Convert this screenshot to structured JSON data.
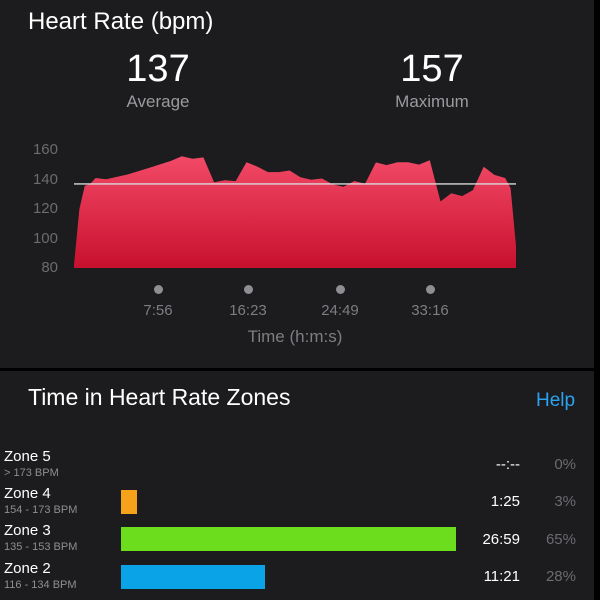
{
  "header": {
    "title": "Heart Rate (bpm)"
  },
  "stats": {
    "average": {
      "value": "137",
      "label": "Average"
    },
    "maximum": {
      "value": "157",
      "label": "Maximum"
    }
  },
  "chart_data": {
    "type": "area",
    "title": "Heart Rate (bpm)",
    "xlabel": "Time (h:m:s)",
    "ylabel": "",
    "ylim": [
      80,
      160
    ],
    "yticks": [
      "160",
      "140",
      "120",
      "100",
      "80"
    ],
    "xticks": [
      "7:56",
      "16:23",
      "24:49",
      "33:16"
    ],
    "average_line": 137,
    "x_minutes": [
      0,
      0.5,
      1,
      1.5,
      2,
      3,
      5,
      7,
      9,
      10,
      11,
      12,
      13,
      14,
      15,
      16,
      17,
      18,
      19,
      20,
      21,
      22,
      23,
      24,
      25,
      26,
      27,
      28,
      29,
      30,
      31,
      32,
      33,
      34,
      35,
      36,
      37,
      38,
      39,
      40,
      40.5,
      41
    ],
    "series": [
      {
        "values": [
          82,
          120,
          135,
          138,
          140,
          141,
          143,
          148,
          153,
          155,
          155,
          154,
          139,
          139,
          139,
          152,
          148,
          146,
          144,
          147,
          141,
          140,
          141,
          136,
          136,
          138,
          138,
          151,
          150,
          152,
          151,
          151,
          152,
          126,
          130,
          129,
          133,
          148,
          144,
          140,
          135,
          95
        ]
      }
    ],
    "colors": {
      "fill_top": "#f24a67",
      "fill_bottom": "#c8102e",
      "line": "#d9d9dc"
    }
  },
  "zones": {
    "title": "Time in Heart Rate Zones",
    "help_label": "Help",
    "items": [
      {
        "name": "Zone 5",
        "range": "> 173 BPM",
        "time": "--:--",
        "percent": "0%",
        "fraction": 0,
        "color": "#000000"
      },
      {
        "name": "Zone 4",
        "range": "154 - 173 BPM",
        "time": "1:25",
        "percent": "3%",
        "fraction": 0.03,
        "color": "#f5a21a"
      },
      {
        "name": "Zone 3",
        "range": "135 - 153 BPM",
        "time": "26:59",
        "percent": "65%",
        "fraction": 0.65,
        "color": "#6bdd1c"
      },
      {
        "name": "Zone 2",
        "range": "116 - 134 BPM",
        "time": "11:21",
        "percent": "28%",
        "fraction": 0.28,
        "color": "#0aa3e8"
      }
    ]
  }
}
